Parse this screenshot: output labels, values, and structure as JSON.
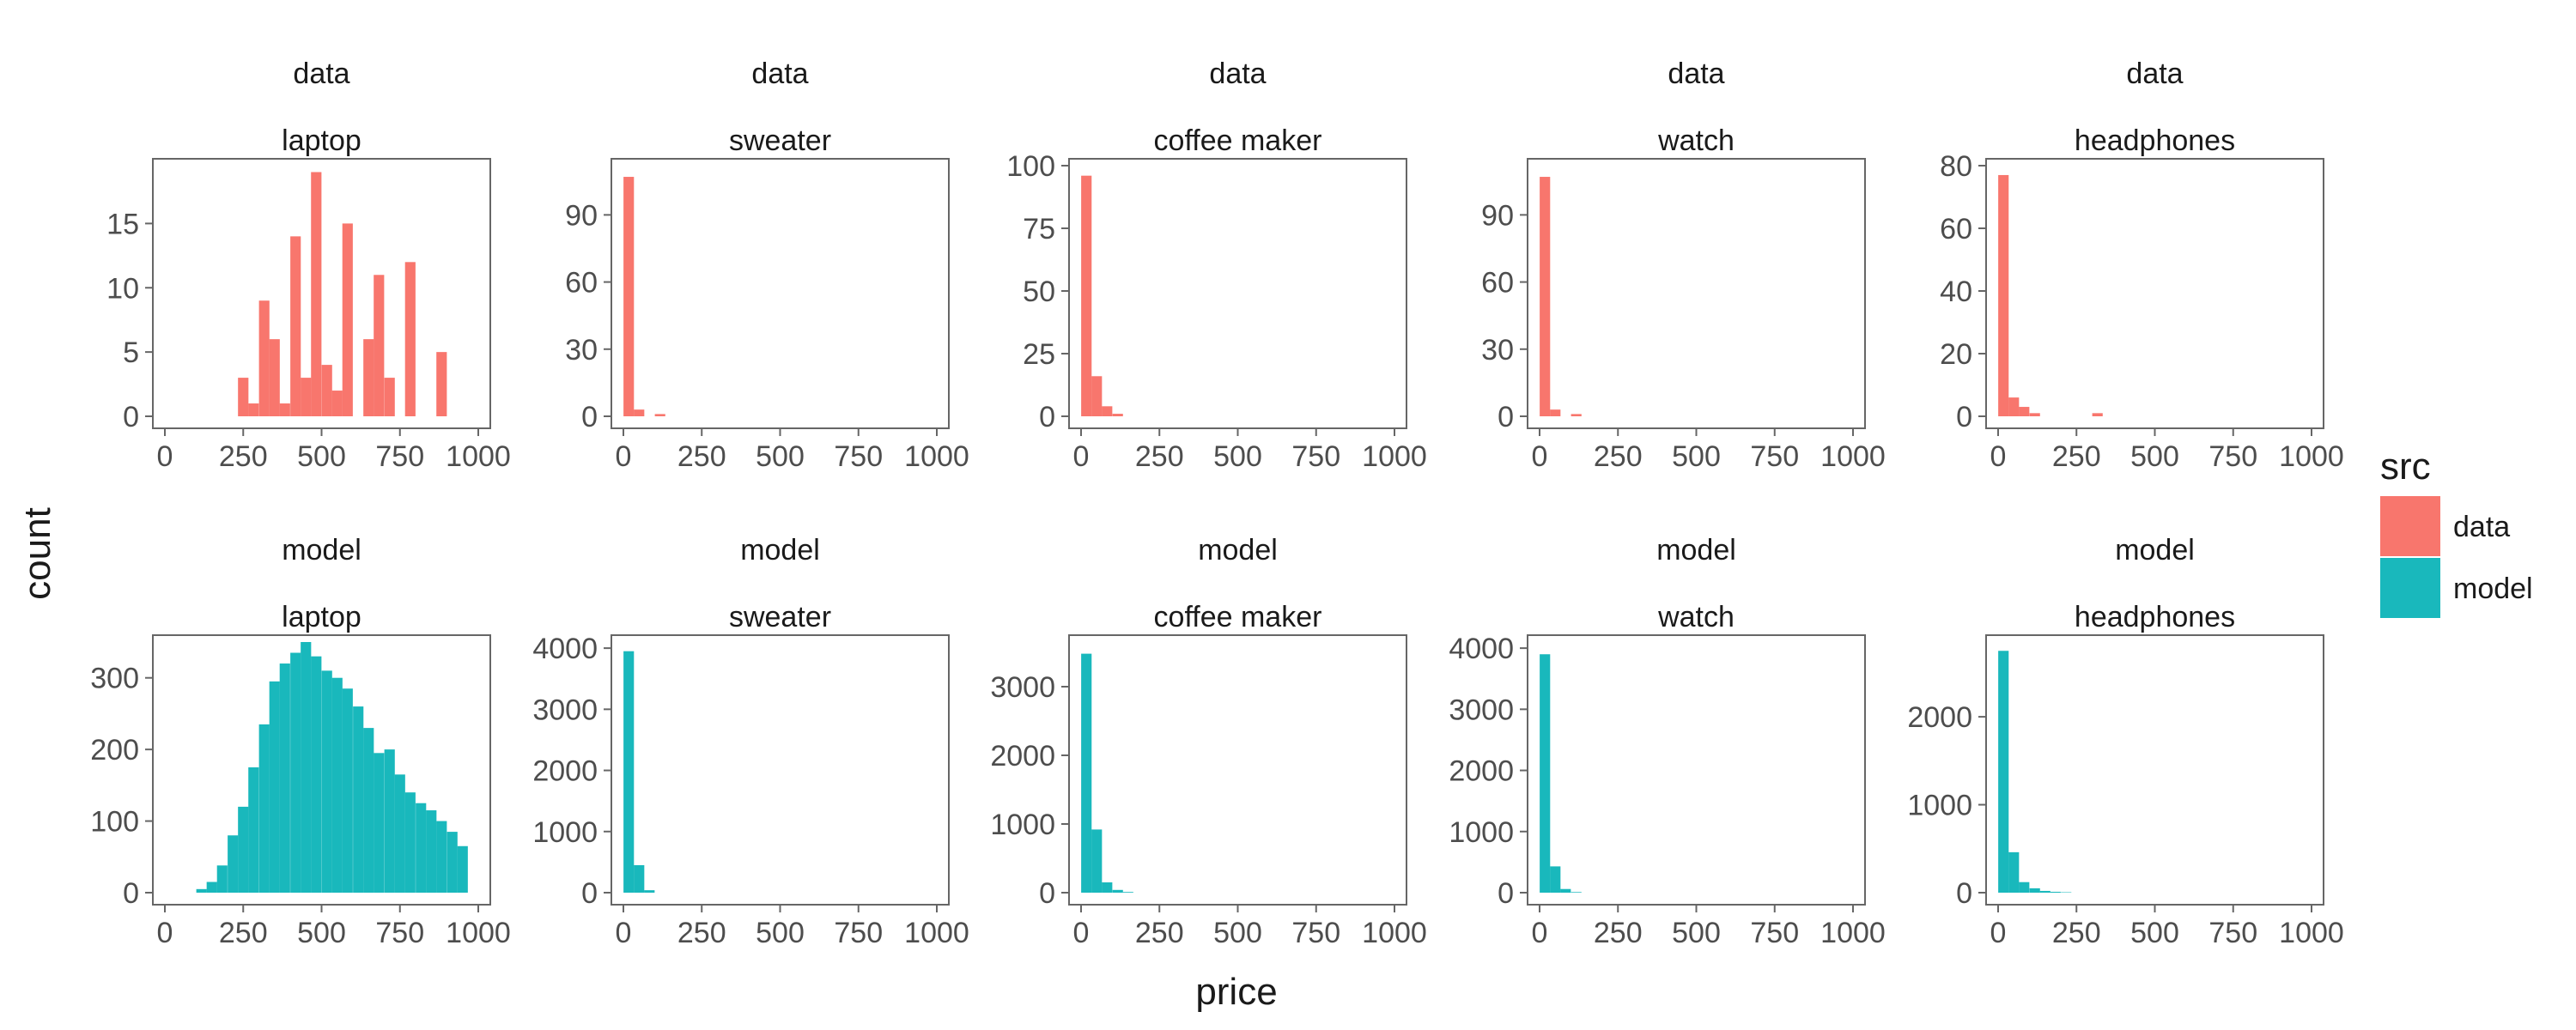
{
  "chart_data": {
    "type": "bar",
    "subtype": "faceted-histogram",
    "xlabel": "price",
    "ylabel": "count",
    "x_range": [
      0,
      1000
    ],
    "x_ticks": [
      0,
      250,
      500,
      750,
      1000
    ],
    "bin_width": 33.33,
    "grid": false,
    "legend": {
      "title": "src",
      "position": "right",
      "entries": [
        {
          "label": "data",
          "color": "#F8766D"
        },
        {
          "label": "model",
          "color": "#19B8BC"
        }
      ]
    },
    "facet_rows": [
      "data",
      "model"
    ],
    "facet_cols": [
      "laptop",
      "sweater",
      "coffee maker",
      "watch",
      "headphones"
    ],
    "panels": [
      {
        "src": "data",
        "category": "laptop",
        "ylim": [
          0,
          19.5
        ],
        "y_ticks": [
          0,
          5,
          10,
          15
        ],
        "bins": [
          [
            250,
            3
          ],
          [
            283,
            1
          ],
          [
            317,
            9
          ],
          [
            350,
            6
          ],
          [
            383,
            1
          ],
          [
            417,
            14
          ],
          [
            450,
            3
          ],
          [
            483,
            19
          ],
          [
            517,
            4
          ],
          [
            550,
            2
          ],
          [
            583,
            15
          ],
          [
            650,
            6
          ],
          [
            683,
            11
          ],
          [
            717,
            3
          ],
          [
            783,
            12
          ],
          [
            883,
            5
          ]
        ]
      },
      {
        "src": "data",
        "category": "sweater",
        "ylim": [
          0,
          112
        ],
        "y_ticks": [
          0,
          30,
          60,
          90
        ],
        "bins": [
          [
            17,
            107
          ],
          [
            50,
            3
          ],
          [
            117,
            1
          ]
        ]
      },
      {
        "src": "data",
        "category": "coffee maker",
        "ylim": [
          0,
          100
        ],
        "y_ticks": [
          0,
          25,
          50,
          75,
          100
        ],
        "bins": [
          [
            17,
            96
          ],
          [
            50,
            16
          ],
          [
            83,
            4
          ],
          [
            117,
            1
          ]
        ]
      },
      {
        "src": "data",
        "category": "watch",
        "ylim": [
          0,
          112
        ],
        "y_ticks": [
          0,
          30,
          60,
          90
        ],
        "bins": [
          [
            17,
            107
          ],
          [
            50,
            3
          ],
          [
            117,
            1
          ]
        ]
      },
      {
        "src": "data",
        "category": "headphones",
        "ylim": [
          0,
          80
        ],
        "y_ticks": [
          0,
          20,
          40,
          60,
          80
        ],
        "bins": [
          [
            17,
            77
          ],
          [
            50,
            6
          ],
          [
            83,
            3
          ],
          [
            117,
            1
          ],
          [
            317,
            1
          ]
        ]
      },
      {
        "src": "model",
        "category": "laptop",
        "ylim": [
          0,
          350
        ],
        "y_ticks": [
          0,
          100,
          200,
          300
        ],
        "bins": [
          [
            117,
            5
          ],
          [
            150,
            15
          ],
          [
            183,
            38
          ],
          [
            217,
            80
          ],
          [
            250,
            120
          ],
          [
            283,
            175
          ],
          [
            317,
            235
          ],
          [
            350,
            295
          ],
          [
            383,
            320
          ],
          [
            417,
            335
          ],
          [
            450,
            350
          ],
          [
            483,
            330
          ],
          [
            517,
            310
          ],
          [
            550,
            300
          ],
          [
            583,
            285
          ],
          [
            617,
            260
          ],
          [
            650,
            230
          ],
          [
            683,
            195
          ],
          [
            717,
            200
          ],
          [
            750,
            165
          ],
          [
            783,
            140
          ],
          [
            817,
            125
          ],
          [
            850,
            115
          ],
          [
            883,
            100
          ],
          [
            917,
            85
          ],
          [
            950,
            65
          ]
        ]
      },
      {
        "src": "model",
        "category": "sweater",
        "ylim": [
          0,
          4100
        ],
        "y_ticks": [
          0,
          1000,
          2000,
          3000,
          4000
        ],
        "bins": [
          [
            17,
            3950
          ],
          [
            50,
            450
          ],
          [
            83,
            40
          ]
        ]
      },
      {
        "src": "model",
        "category": "coffee maker",
        "ylim": [
          0,
          3650
        ],
        "y_ticks": [
          0,
          1000,
          2000,
          3000
        ],
        "bins": [
          [
            17,
            3480
          ],
          [
            50,
            920
          ],
          [
            83,
            150
          ],
          [
            117,
            40
          ],
          [
            150,
            10
          ]
        ]
      },
      {
        "src": "model",
        "category": "watch",
        "ylim": [
          0,
          4100
        ],
        "y_ticks": [
          0,
          1000,
          2000,
          3000,
          4000
        ],
        "bins": [
          [
            17,
            3900
          ],
          [
            50,
            430
          ],
          [
            83,
            60
          ],
          [
            117,
            10
          ]
        ]
      },
      {
        "src": "model",
        "category": "headphones",
        "ylim": [
          0,
          2850
        ],
        "y_ticks": [
          0,
          1000,
          2000
        ],
        "bins": [
          [
            17,
            2750
          ],
          [
            50,
            460
          ],
          [
            83,
            120
          ],
          [
            117,
            50
          ],
          [
            150,
            20
          ],
          [
            183,
            10
          ],
          [
            217,
            5
          ]
        ]
      }
    ]
  }
}
